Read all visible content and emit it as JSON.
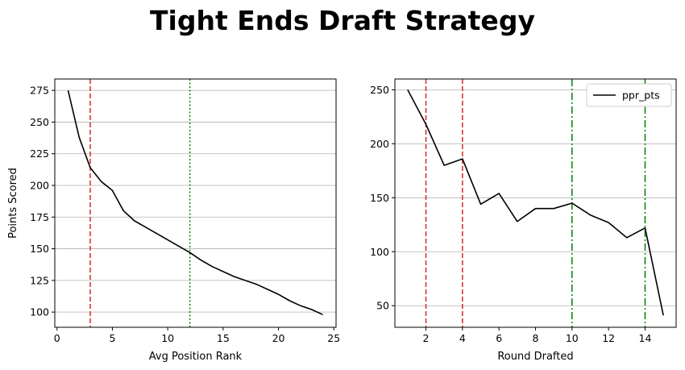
{
  "figure": {
    "title": "Tight Ends Draft Strategy"
  },
  "chart_data": [
    {
      "type": "line",
      "xlabel": "Avg Position Rank",
      "ylabel": "Points Scored",
      "xlim": [
        -0.2,
        25.2
      ],
      "ylim": [
        88,
        284
      ],
      "xticks": [
        0,
        5,
        10,
        15,
        20,
        25
      ],
      "yticks": [
        100,
        125,
        150,
        175,
        200,
        225,
        250,
        275
      ],
      "grid": "y",
      "series": [
        {
          "name": "",
          "color": "#000000",
          "x": [
            1,
            2,
            3,
            4,
            5,
            6,
            7,
            8,
            9,
            10,
            11,
            12,
            13,
            14,
            15,
            16,
            17,
            18,
            19,
            20,
            21,
            22,
            23,
            24
          ],
          "y": [
            275,
            238,
            214,
            203,
            196,
            180,
            172,
            167,
            162,
            157,
            152,
            147,
            141,
            136,
            132,
            128,
            125,
            122,
            118,
            114,
            109,
            105,
            102,
            98
          ]
        }
      ],
      "vlines": [
        {
          "x": 3,
          "color": "#d62728",
          "style": "dashed"
        },
        {
          "x": 12,
          "color": "#008000",
          "style": "dotted"
        }
      ]
    },
    {
      "type": "line",
      "xlabel": "Round Drafted",
      "ylabel": "",
      "xlim": [
        0.3,
        15.7
      ],
      "ylim": [
        30,
        260
      ],
      "xticks": [
        2,
        4,
        6,
        8,
        10,
        12,
        14
      ],
      "yticks": [
        50,
        100,
        150,
        200,
        250
      ],
      "grid": "y",
      "legend": {
        "position": "top-right"
      },
      "series": [
        {
          "name": "ppr_pts",
          "color": "#000000",
          "x": [
            1,
            2,
            3,
            4,
            5,
            6,
            7,
            8,
            9,
            10,
            11,
            12,
            13,
            14,
            15
          ],
          "y": [
            250,
            218,
            180,
            186,
            144,
            154,
            128,
            140,
            140,
            145,
            134,
            127,
            113,
            122,
            41
          ]
        }
      ],
      "vlines": [
        {
          "x": 2,
          "color": "#d62728",
          "style": "dashed"
        },
        {
          "x": 4,
          "color": "#d62728",
          "style": "dashed"
        },
        {
          "x": 10,
          "color": "#008000",
          "style": "dashdot"
        },
        {
          "x": 14,
          "color": "#008000",
          "style": "dashdot"
        }
      ]
    }
  ]
}
